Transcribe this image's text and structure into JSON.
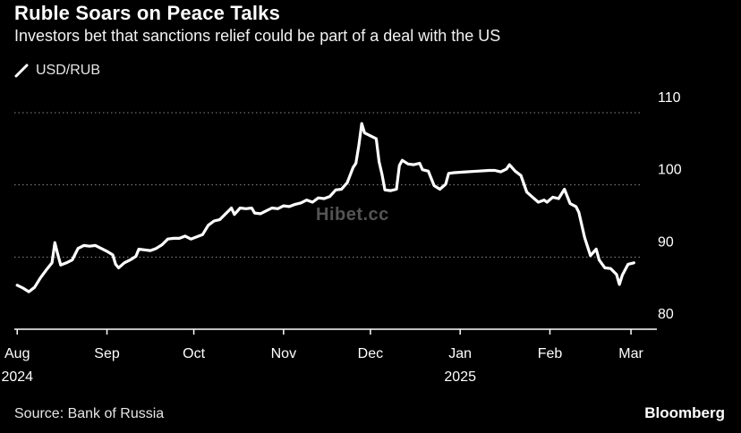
{
  "header": {
    "title": "Ruble Soars on Peace Talks",
    "subtitle": "Investors bet that sanctions relief could be part of a deal with the US"
  },
  "legend": {
    "label": "USD/RUB",
    "color": "#ffffff"
  },
  "footer": {
    "source": "Source: Bank of Russia",
    "brand": "Bloomberg"
  },
  "watermark": "Hibet.cc",
  "chart_data": {
    "type": "line",
    "grid": true,
    "grid_style": "dotted-horizontal",
    "y_axis_position": "right",
    "ylim": [
      80,
      110
    ],
    "yticks": [
      80,
      90,
      100,
      110
    ],
    "xlim": [
      "2024-07-31",
      "2025-03-05"
    ],
    "x_ticks": [
      {
        "date": "2024-08-01",
        "label": "Aug",
        "sublabel": "2024"
      },
      {
        "date": "2024-09-01",
        "label": "Sep",
        "sublabel": ""
      },
      {
        "date": "2024-10-01",
        "label": "Oct",
        "sublabel": ""
      },
      {
        "date": "2024-11-01",
        "label": "Nov",
        "sublabel": ""
      },
      {
        "date": "2024-12-01",
        "label": "Dec",
        "sublabel": ""
      },
      {
        "date": "2025-01-01",
        "label": "Jan",
        "sublabel": "2025"
      },
      {
        "date": "2025-02-01",
        "label": "Feb",
        "sublabel": ""
      },
      {
        "date": "2025-03-01",
        "label": "Mar",
        "sublabel": ""
      }
    ],
    "series": [
      {
        "name": "USD/RUB",
        "color": "#ffffff",
        "points": [
          [
            "2024-08-01",
            86.1
          ],
          [
            "2024-08-03",
            85.7
          ],
          [
            "2024-08-05",
            85.2
          ],
          [
            "2024-08-07",
            85.8
          ],
          [
            "2024-08-09",
            87.1
          ],
          [
            "2024-08-11",
            88.2
          ],
          [
            "2024-08-13",
            89.2
          ],
          [
            "2024-08-14",
            92.0
          ],
          [
            "2024-08-15",
            90.4
          ],
          [
            "2024-08-16",
            88.9
          ],
          [
            "2024-08-18",
            89.2
          ],
          [
            "2024-08-20",
            89.6
          ],
          [
            "2024-08-22",
            91.2
          ],
          [
            "2024-08-24",
            91.6
          ],
          [
            "2024-08-26",
            91.5
          ],
          [
            "2024-08-28",
            91.6
          ],
          [
            "2024-08-30",
            91.2
          ],
          [
            "2024-09-01",
            90.8
          ],
          [
            "2024-09-03",
            90.3
          ],
          [
            "2024-09-04",
            89.0
          ],
          [
            "2024-09-05",
            88.5
          ],
          [
            "2024-09-07",
            89.2
          ],
          [
            "2024-09-09",
            89.6
          ],
          [
            "2024-09-11",
            90.1
          ],
          [
            "2024-09-12",
            91.1
          ],
          [
            "2024-09-14",
            91.0
          ],
          [
            "2024-09-16",
            90.9
          ],
          [
            "2024-09-18",
            91.2
          ],
          [
            "2024-09-20",
            91.7
          ],
          [
            "2024-09-22",
            92.5
          ],
          [
            "2024-09-24",
            92.6
          ],
          [
            "2024-09-26",
            92.6
          ],
          [
            "2024-09-28",
            92.9
          ],
          [
            "2024-09-30",
            92.5
          ],
          [
            "2024-10-02",
            92.8
          ],
          [
            "2024-10-04",
            93.1
          ],
          [
            "2024-10-06",
            94.4
          ],
          [
            "2024-10-08",
            95.0
          ],
          [
            "2024-10-10",
            95.2
          ],
          [
            "2024-10-12",
            96.0
          ],
          [
            "2024-10-14",
            96.8
          ],
          [
            "2024-10-15",
            95.9
          ],
          [
            "2024-10-17",
            96.8
          ],
          [
            "2024-10-19",
            96.7
          ],
          [
            "2024-10-21",
            96.8
          ],
          [
            "2024-10-22",
            96.1
          ],
          [
            "2024-10-24",
            96.0
          ],
          [
            "2024-10-26",
            96.4
          ],
          [
            "2024-10-28",
            96.8
          ],
          [
            "2024-10-30",
            96.7
          ],
          [
            "2024-11-01",
            97.1
          ],
          [
            "2024-11-03",
            97.0
          ],
          [
            "2024-11-05",
            97.3
          ],
          [
            "2024-11-07",
            97.5
          ],
          [
            "2024-11-09",
            97.9
          ],
          [
            "2024-11-11",
            97.6
          ],
          [
            "2024-11-13",
            98.2
          ],
          [
            "2024-11-15",
            98.1
          ],
          [
            "2024-11-17",
            98.4
          ],
          [
            "2024-11-19",
            99.3
          ],
          [
            "2024-11-21",
            99.4
          ],
          [
            "2024-11-23",
            100.3
          ],
          [
            "2024-11-25",
            102.4
          ],
          [
            "2024-11-26",
            103.0
          ],
          [
            "2024-11-27",
            105.5
          ],
          [
            "2024-11-28",
            108.5
          ],
          [
            "2024-11-29",
            107.2
          ],
          [
            "2024-12-01",
            106.8
          ],
          [
            "2024-12-03",
            106.4
          ],
          [
            "2024-12-04",
            103.2
          ],
          [
            "2024-12-05",
            101.5
          ],
          [
            "2024-12-06",
            99.3
          ],
          [
            "2024-12-08",
            99.2
          ],
          [
            "2024-12-10",
            99.4
          ],
          [
            "2024-12-11",
            102.7
          ],
          [
            "2024-12-12",
            103.4
          ],
          [
            "2024-12-14",
            102.9
          ],
          [
            "2024-12-16",
            102.8
          ],
          [
            "2024-12-18",
            103.0
          ],
          [
            "2024-12-19",
            102.1
          ],
          [
            "2024-12-21",
            101.9
          ],
          [
            "2024-12-23",
            99.9
          ],
          [
            "2024-12-25",
            99.4
          ],
          [
            "2024-12-27",
            100.1
          ],
          [
            "2024-12-28",
            101.6
          ],
          [
            "2024-12-30",
            101.7
          ],
          [
            "2025-01-03",
            101.8
          ],
          [
            "2025-01-07",
            101.9
          ],
          [
            "2025-01-11",
            102.0
          ],
          [
            "2025-01-13",
            102.0
          ],
          [
            "2025-01-15",
            101.8
          ],
          [
            "2025-01-17",
            102.2
          ],
          [
            "2025-01-18",
            102.8
          ],
          [
            "2025-01-20",
            101.9
          ],
          [
            "2025-01-22",
            101.3
          ],
          [
            "2025-01-24",
            99.0
          ],
          [
            "2025-01-26",
            98.3
          ],
          [
            "2025-01-28",
            97.6
          ],
          [
            "2025-01-30",
            97.9
          ],
          [
            "2025-01-31",
            97.6
          ],
          [
            "2025-02-02",
            98.3
          ],
          [
            "2025-02-04",
            98.1
          ],
          [
            "2025-02-06",
            99.4
          ],
          [
            "2025-02-08",
            97.4
          ],
          [
            "2025-02-10",
            97.0
          ],
          [
            "2025-02-11",
            96.2
          ],
          [
            "2025-02-13",
            92.7
          ],
          [
            "2025-02-15",
            90.2
          ],
          [
            "2025-02-17",
            91.1
          ],
          [
            "2025-02-18",
            89.6
          ],
          [
            "2025-02-20",
            88.5
          ],
          [
            "2025-02-22",
            88.4
          ],
          [
            "2025-02-24",
            87.6
          ],
          [
            "2025-02-25",
            86.2
          ],
          [
            "2025-02-26",
            87.5
          ],
          [
            "2025-02-28",
            89.0
          ],
          [
            "2025-03-02",
            89.2
          ]
        ]
      }
    ]
  }
}
